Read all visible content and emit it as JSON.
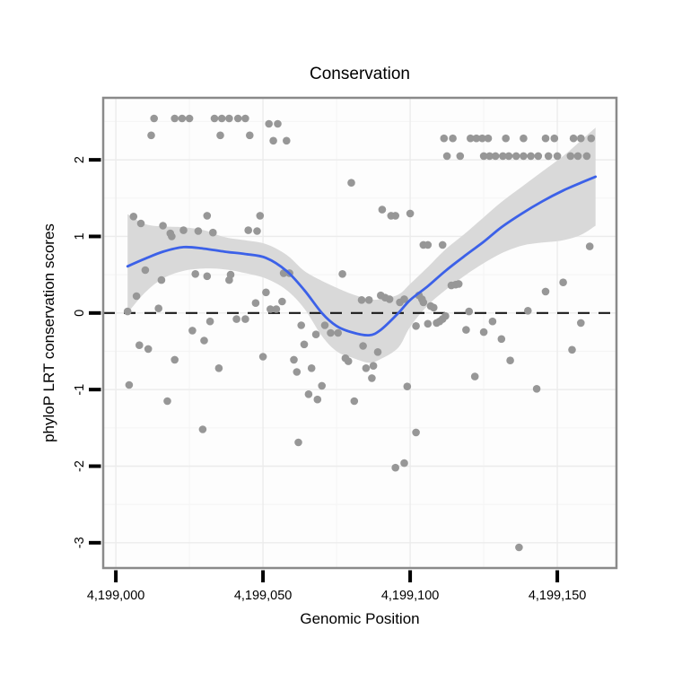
{
  "figure": {
    "title": "Conservation",
    "xlabel": "Genomic Position",
    "ylabel": "phyloP LRT conservation scores"
  },
  "chart_data": {
    "type": "scatter",
    "title": "Conservation",
    "xlabel": "Genomic Position",
    "ylabel": "phyloP LRT conservation scores",
    "xlim": [
      4198995.7,
      4199170.1
    ],
    "ylim": [
      -3.33,
      2.81
    ],
    "x_ticks": [
      {
        "value": 4199000,
        "label": "4,199,000"
      },
      {
        "value": 4199050,
        "label": "4,199,050"
      },
      {
        "value": 4199100,
        "label": "4,199,100"
      },
      {
        "value": 4199150,
        "label": "4,199,150"
      }
    ],
    "y_ticks": [
      {
        "value": 2,
        "label": "2"
      },
      {
        "value": 1,
        "label": "1"
      },
      {
        "value": 0,
        "label": "0"
      },
      {
        "value": -1,
        "label": "-1"
      },
      {
        "value": -2,
        "label": "-2"
      },
      {
        "value": -3,
        "label": "-3"
      }
    ],
    "x_minor": [
      4199025,
      4199075,
      4199125
    ],
    "y_minor": [
      2.5,
      1.5,
      0.5,
      -0.5,
      -1.5,
      -2.5
    ],
    "zero_line_y": 0,
    "grid": true,
    "legend": null,
    "colors": {
      "point": "#979797",
      "line": "#3C61E8",
      "ribbon": "#D9D9D9",
      "panel_bg": "#FDFDFD",
      "grid_major": "#ECECEC",
      "grid_minor": "#F5F5F5",
      "frame": "#8A8A8A",
      "tick": "#000000",
      "zero_line": "#1A1A1A",
      "text": "#000000"
    },
    "points": [
      [
        4199013,
        2.54
      ],
      [
        4199020,
        2.54
      ],
      [
        4199022.5,
        2.54
      ],
      [
        4199025,
        2.54
      ],
      [
        4199033.5,
        2.54
      ],
      [
        4199036,
        2.54
      ],
      [
        4199038.5,
        2.54
      ],
      [
        4199041.5,
        2.54
      ],
      [
        4199044,
        2.54
      ],
      [
        4199052,
        2.47
      ],
      [
        4199055,
        2.47
      ],
      [
        4199012,
        2.32
      ],
      [
        4199035.5,
        2.32
      ],
      [
        4199045.5,
        2.32
      ],
      [
        4199053.5,
        2.25
      ],
      [
        4199058,
        2.25
      ],
      [
        4199111.5,
        2.28
      ],
      [
        4199114.5,
        2.28
      ],
      [
        4199120.5,
        2.28
      ],
      [
        4199122.5,
        2.28
      ],
      [
        4199124.5,
        2.28
      ],
      [
        4199126.5,
        2.28
      ],
      [
        4199132.5,
        2.28
      ],
      [
        4199138.5,
        2.28
      ],
      [
        4199146,
        2.28
      ],
      [
        4199149,
        2.28
      ],
      [
        4199155.5,
        2.28
      ],
      [
        4199158,
        2.28
      ],
      [
        4199161.5,
        2.28
      ],
      [
        4199112.5,
        2.05
      ],
      [
        4199117,
        2.05
      ],
      [
        4199125,
        2.05
      ],
      [
        4199127,
        2.05
      ],
      [
        4199129,
        2.05
      ],
      [
        4199131.5,
        2.05
      ],
      [
        4199133.5,
        2.05
      ],
      [
        4199136,
        2.05
      ],
      [
        4199138.5,
        2.05
      ],
      [
        4199141,
        2.05
      ],
      [
        4199143.5,
        2.05
      ],
      [
        4199147,
        2.05
      ],
      [
        4199150,
        2.05
      ],
      [
        4199154.5,
        2.05
      ],
      [
        4199157,
        2.05
      ],
      [
        4199160,
        2.05
      ],
      [
        4199006,
        1.26
      ],
      [
        4199008.5,
        1.17
      ],
      [
        4199016,
        1.14
      ],
      [
        4199018.5,
        1.04
      ],
      [
        4199019,
        1.0
      ],
      [
        4199023,
        1.08
      ],
      [
        4199028,
        1.07
      ],
      [
        4199031,
        1.27
      ],
      [
        4199033,
        1.05
      ],
      [
        4199045,
        1.08
      ],
      [
        4199048,
        1.07
      ],
      [
        4199049,
        1.27
      ],
      [
        4199080,
        1.7
      ],
      [
        4199090.5,
        1.35
      ],
      [
        4199093.5,
        1.27
      ],
      [
        4199095,
        1.27
      ],
      [
        4199100,
        1.3
      ],
      [
        4199104.5,
        0.89
      ],
      [
        4199106,
        0.89
      ],
      [
        4199111,
        0.89
      ],
      [
        4199161,
        0.87
      ],
      [
        4199010,
        0.56
      ],
      [
        4199015.5,
        0.43
      ],
      [
        4199027,
        0.51
      ],
      [
        4199031,
        0.48
      ],
      [
        4199038.5,
        0.43
      ],
      [
        4199039,
        0.5
      ],
      [
        4199051,
        0.27
      ],
      [
        4199057,
        0.52
      ],
      [
        4199059,
        0.52
      ],
      [
        4199077,
        0.51
      ],
      [
        4199007,
        0.22
      ],
      [
        4199004,
        0.02
      ],
      [
        4199014.5,
        0.06
      ],
      [
        4199047.5,
        0.13
      ],
      [
        4199052.5,
        0.05
      ],
      [
        4199054.5,
        0.05
      ],
      [
        4199056.5,
        0.15
      ],
      [
        4199083.5,
        0.17
      ],
      [
        4199086,
        0.17
      ],
      [
        4199090,
        0.23
      ],
      [
        4199091.5,
        0.2
      ],
      [
        4199093,
        0.18
      ],
      [
        4199096.5,
        0.14
      ],
      [
        4199098,
        0.18
      ],
      [
        4199103,
        0.23
      ],
      [
        4199104,
        0.18
      ],
      [
        4199104.5,
        0.14
      ],
      [
        4199107,
        0.09
      ],
      [
        4199108,
        0.07
      ],
      [
        4199114,
        0.36
      ],
      [
        4199115.5,
        0.37
      ],
      [
        4199116.5,
        0.38
      ],
      [
        4199120,
        0.02
      ],
      [
        4199140,
        0.03
      ],
      [
        4199146,
        0.28
      ],
      [
        4199152,
        0.4
      ],
      [
        4199026,
        -0.23
      ],
      [
        4199030,
        -0.36
      ],
      [
        4199032,
        -0.11
      ],
      [
        4199041,
        -0.08
      ],
      [
        4199044,
        -0.08
      ],
      [
        4199063,
        -0.16
      ],
      [
        4199071,
        -0.16
      ],
      [
        4199068,
        -0.28
      ],
      [
        4199073,
        -0.26
      ],
      [
        4199075.5,
        -0.26
      ],
      [
        4199064,
        -0.41
      ],
      [
        4199008,
        -0.42
      ],
      [
        4199011,
        -0.47
      ],
      [
        4199020,
        -0.61
      ],
      [
        4199050,
        -0.57
      ],
      [
        4199035,
        -0.72
      ],
      [
        4199060.5,
        -0.61
      ],
      [
        4199061.5,
        -0.77
      ],
      [
        4199066.5,
        -0.72
      ],
      [
        4199078,
        -0.59
      ],
      [
        4199079,
        -0.63
      ],
      [
        4199102,
        -0.17
      ],
      [
        4199106,
        -0.14
      ],
      [
        4199109,
        -0.13
      ],
      [
        4199110,
        -0.11
      ],
      [
        4199111,
        -0.08
      ],
      [
        4199112,
        -0.04
      ],
      [
        4199119,
        -0.22
      ],
      [
        4199125,
        -0.25
      ],
      [
        4199128,
        -0.11
      ],
      [
        4199131,
        -0.34
      ],
      [
        4199134,
        -0.62
      ],
      [
        4199155,
        -0.48
      ],
      [
        4199158,
        -0.13
      ],
      [
        4199084,
        -0.43
      ],
      [
        4199089,
        -0.51
      ],
      [
        4199085,
        -0.72
      ],
      [
        4199087.5,
        -0.69
      ],
      [
        4199087,
        -0.85
      ],
      [
        4199099,
        -0.96
      ],
      [
        4199122,
        -0.83
      ],
      [
        4199143,
        -0.99
      ],
      [
        4199004.5,
        -0.94
      ],
      [
        4199017.5,
        -1.15
      ],
      [
        4199065.5,
        -1.06
      ],
      [
        4199070,
        -0.95
      ],
      [
        4199068.5,
        -1.13
      ],
      [
        4199081,
        -1.15
      ],
      [
        4199029.5,
        -1.52
      ],
      [
        4199062,
        -1.69
      ],
      [
        4199102,
        -1.56
      ],
      [
        4199095,
        -2.02
      ],
      [
        4199098,
        -1.96
      ],
      [
        4199137,
        -3.06
      ]
    ],
    "smooth_line": [
      [
        4199004,
        0.61
      ],
      [
        4199010,
        0.71
      ],
      [
        4199016,
        0.8
      ],
      [
        4199023,
        0.86
      ],
      [
        4199030,
        0.84
      ],
      [
        4199037,
        0.8
      ],
      [
        4199044,
        0.77
      ],
      [
        4199051,
        0.72
      ],
      [
        4199058,
        0.55
      ],
      [
        4199064,
        0.3
      ],
      [
        4199070,
        0.0
      ],
      [
        4199075,
        -0.17
      ],
      [
        4199080,
        -0.25
      ],
      [
        4199086,
        -0.29
      ],
      [
        4199090,
        -0.22
      ],
      [
        4199096,
        0.0
      ],
      [
        4199100,
        0.17
      ],
      [
        4199106,
        0.35
      ],
      [
        4199112,
        0.55
      ],
      [
        4199119,
        0.76
      ],
      [
        4199125,
        0.93
      ],
      [
        4199131,
        1.12
      ],
      [
        4199138,
        1.3
      ],
      [
        4199145,
        1.46
      ],
      [
        4199152,
        1.6
      ],
      [
        4199158,
        1.7
      ],
      [
        4199163,
        1.78
      ]
    ],
    "ribbon_upper": [
      [
        4199004,
        1.29
      ],
      [
        4199010,
        1.16
      ],
      [
        4199016,
        1.13
      ],
      [
        4199023,
        1.12
      ],
      [
        4199030,
        1.08
      ],
      [
        4199037,
        0.99
      ],
      [
        4199044,
        0.95
      ],
      [
        4199051,
        0.9
      ],
      [
        4199058,
        0.76
      ],
      [
        4199064,
        0.55
      ],
      [
        4199070,
        0.42
      ],
      [
        4199075,
        0.33
      ],
      [
        4199080,
        0.25
      ],
      [
        4199086,
        0.18
      ],
      [
        4199090,
        0.18
      ],
      [
        4199096,
        0.24
      ],
      [
        4199100,
        0.38
      ],
      [
        4199106,
        0.6
      ],
      [
        4199112,
        0.83
      ],
      [
        4199119,
        1.05
      ],
      [
        4199125,
        1.25
      ],
      [
        4199131,
        1.45
      ],
      [
        4199138,
        1.65
      ],
      [
        4199145,
        1.85
      ],
      [
        4199152,
        2.05
      ],
      [
        4199158,
        2.25
      ],
      [
        4199163,
        2.42
      ]
    ],
    "ribbon_lower": [
      [
        4199004,
        0.0
      ],
      [
        4199010,
        0.27
      ],
      [
        4199016,
        0.45
      ],
      [
        4199023,
        0.55
      ],
      [
        4199030,
        0.58
      ],
      [
        4199037,
        0.57
      ],
      [
        4199044,
        0.52
      ],
      [
        4199051,
        0.45
      ],
      [
        4199058,
        0.3
      ],
      [
        4199064,
        0.06
      ],
      [
        4199070,
        -0.3
      ],
      [
        4199075,
        -0.5
      ],
      [
        4199080,
        -0.58
      ],
      [
        4199086,
        -0.65
      ],
      [
        4199090,
        -0.6
      ],
      [
        4199096,
        -0.45
      ],
      [
        4199100,
        -0.18
      ],
      [
        4199106,
        0.1
      ],
      [
        4199112,
        0.3
      ],
      [
        4199119,
        0.5
      ],
      [
        4199125,
        0.65
      ],
      [
        4199131,
        0.78
      ],
      [
        4199138,
        0.88
      ],
      [
        4199145,
        0.92
      ],
      [
        4199152,
        0.95
      ],
      [
        4199158,
        1.02
      ],
      [
        4199163,
        1.14
      ]
    ]
  }
}
